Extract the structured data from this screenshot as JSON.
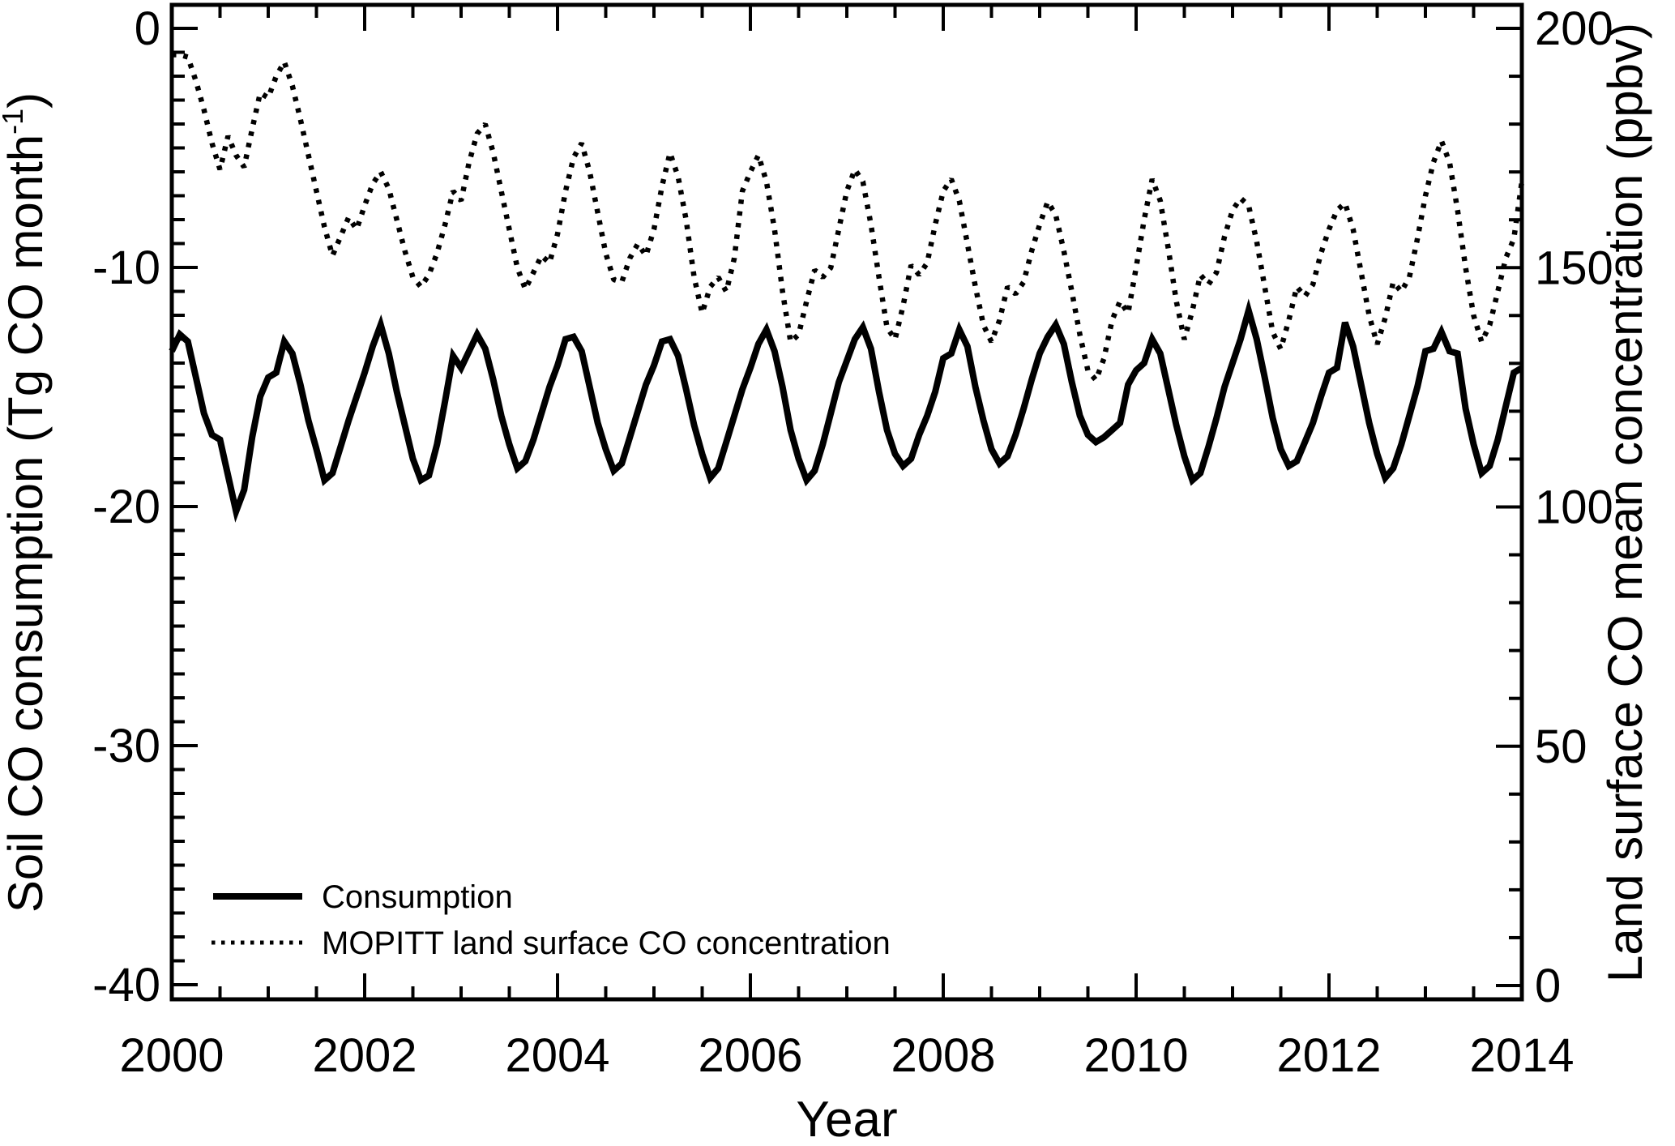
{
  "axes": {
    "x_title": "Year",
    "y_left_title": "Soil CO consumption (Tg CO month-1)",
    "y_left_title_parts": {
      "pre": "Soil CO consumption (Tg CO month",
      "sup": "-1",
      "post": ")"
    },
    "y_right_title": "Land surface CO mean concentration (ppbv)"
  },
  "colors": {
    "foreground": "#000000",
    "background": "#ffffff"
  },
  "chart_data": {
    "type": "line",
    "title": "",
    "xlabel": "Year",
    "ylabel_left": "Soil CO consumption (Tg CO month-1)",
    "ylabel_right": "Land surface CO mean concentration (ppbv)",
    "x_range": [
      2000,
      2014
    ],
    "x_tick_labels": [
      "2000",
      "2002",
      "2004",
      "2006",
      "2008",
      "2010",
      "2012",
      "2014"
    ],
    "x_major_tick_values": [
      2000,
      2002,
      2004,
      2006,
      2008,
      2010,
      2012,
      2014
    ],
    "x_minor_step_years": 0.5,
    "y_left_axis": {
      "title": "Soil CO consumption (Tg CO month-1)",
      "tick_labels": [
        "0",
        "-10",
        "-20",
        "-30",
        "-40"
      ],
      "tick_values": [
        0,
        -10,
        -20,
        -30,
        -40
      ],
      "minor_step": 1,
      "range": [
        0,
        -40
      ]
    },
    "y_right_axis": {
      "title": "Land surface CO mean concentration (ppbv)",
      "tick_labels": [
        "200",
        "150",
        "100",
        "50",
        "0"
      ],
      "tick_values": [
        200,
        150,
        100,
        50,
        0
      ],
      "minor_step": 10,
      "range": [
        0,
        200
      ]
    },
    "grid": false,
    "legend_position": "bottom-left",
    "sampling": "monthly",
    "start_year": 2000,
    "end_year": 2014,
    "series": [
      {
        "name": "Consumption",
        "axis": "left",
        "line_style": "solid",
        "units": "Tg CO month-1",
        "values": [
          -13.5,
          -12.8,
          -13.1,
          -14.6,
          -16.1,
          -17.0,
          -17.2,
          -18.7,
          -20.2,
          -19.3,
          -17.1,
          -15.4,
          -14.6,
          -14.4,
          -13.1,
          -13.6,
          -14.9,
          -16.4,
          -17.6,
          -18.9,
          -18.6,
          -17.5,
          -16.4,
          -15.4,
          -14.4,
          -13.3,
          -12.4,
          -13.6,
          -15.2,
          -16.6,
          -18.0,
          -18.9,
          -18.7,
          -17.4,
          -15.6,
          -13.7,
          -14.2,
          -13.5,
          -12.8,
          -13.4,
          -14.7,
          -16.2,
          -17.4,
          -18.4,
          -18.1,
          -17.2,
          -16.1,
          -15.0,
          -14.1,
          -13.0,
          -12.9,
          -13.5,
          -15.0,
          -16.5,
          -17.6,
          -18.5,
          -18.2,
          -17.1,
          -16.0,
          -14.9,
          -14.1,
          -13.1,
          -13.0,
          -13.7,
          -15.1,
          -16.6,
          -17.8,
          -18.8,
          -18.4,
          -17.3,
          -16.2,
          -15.1,
          -14.2,
          -13.2,
          -12.6,
          -13.5,
          -15.0,
          -16.8,
          -18.0,
          -18.9,
          -18.5,
          -17.4,
          -16.1,
          -14.8,
          -13.9,
          -13.0,
          -12.5,
          -13.4,
          -15.2,
          -16.8,
          -17.8,
          -18.3,
          -18.0,
          -17.0,
          -16.2,
          -15.2,
          -13.8,
          -13.6,
          -12.6,
          -13.3,
          -15.0,
          -16.4,
          -17.6,
          -18.2,
          -17.9,
          -17.0,
          -15.9,
          -14.7,
          -13.6,
          -12.9,
          -12.4,
          -13.2,
          -14.8,
          -16.2,
          -17.0,
          -17.3,
          -17.1,
          -16.8,
          -16.5,
          -14.9,
          -14.3,
          -14.0,
          -13.0,
          -13.6,
          -15.1,
          -16.6,
          -17.9,
          -18.9,
          -18.6,
          -17.5,
          -16.3,
          -15.0,
          -14.0,
          -13.0,
          -11.8,
          -13.0,
          -14.6,
          -16.3,
          -17.6,
          -18.3,
          -18.1,
          -17.3,
          -16.5,
          -15.4,
          -14.4,
          -14.2,
          -12.3,
          -13.3,
          -14.9,
          -16.5,
          -17.8,
          -18.8,
          -18.4,
          -17.4,
          -16.2,
          -15.0,
          -13.5,
          -13.4,
          -12.7,
          -13.5,
          -13.6,
          -15.9,
          -17.4,
          -18.6,
          -18.3,
          -17.2,
          -15.8,
          -14.4,
          -14.2
        ]
      },
      {
        "name": "MOPITT land surface CO concentration",
        "axis": "right",
        "line_style": "dotted",
        "units": "ppbv",
        "values": [
          194.5,
          194.5,
          194.0,
          189.0,
          183.0,
          176.0,
          170.5,
          177.5,
          173.5,
          171.0,
          179.0,
          186.5,
          185.5,
          190.0,
          193.0,
          188.0,
          181.0,
          173.5,
          166.0,
          158.5,
          152.5,
          156.5,
          160.5,
          158.0,
          163.0,
          167.5,
          170.0,
          166.5,
          160.0,
          153.5,
          148.0,
          146.0,
          148.5,
          153.0,
          159.0,
          166.0,
          164.0,
          172.0,
          178.0,
          180.0,
          174.0,
          166.0,
          158.0,
          150.0,
          145.5,
          149.0,
          152.5,
          151.0,
          157.0,
          166.0,
          173.0,
          176.0,
          170.0,
          161.5,
          153.0,
          147.5,
          147.0,
          152.0,
          155.0,
          152.5,
          158.0,
          167.0,
          174.0,
          169.0,
          160.0,
          148.0,
          140.5,
          146.0,
          148.0,
          145.0,
          152.0,
          166.0,
          170.0,
          173.5,
          168.0,
          158.0,
          145.0,
          134.5,
          136.0,
          143.0,
          149.5,
          148.0,
          150.0,
          158.0,
          166.0,
          170.5,
          168.0,
          159.0,
          148.0,
          137.5,
          135.0,
          142.0,
          150.5,
          148.5,
          151.0,
          159.0,
          166.0,
          168.5,
          164.0,
          155.0,
          146.0,
          138.0,
          134.5,
          139.0,
          146.0,
          144.5,
          147.0,
          153.5,
          159.0,
          163.8,
          161.0,
          153.5,
          145.0,
          136.0,
          128.5,
          126.5,
          131.0,
          139.0,
          143.0,
          140.5,
          150.0,
          160.0,
          168.5,
          164.0,
          154.0,
          143.0,
          135.0,
          141.0,
          148.5,
          146.5,
          149.0,
          156.5,
          162.0,
          164.5,
          163.0,
          155.5,
          146.0,
          136.5,
          133.0,
          139.0,
          146.0,
          144.0,
          146.5,
          153.0,
          158.0,
          162.0,
          163.5,
          158.0,
          149.0,
          140.0,
          134.0,
          139.5,
          147.0,
          145.0,
          148.0,
          156.0,
          165.0,
          172.0,
          176.5,
          172.0,
          162.0,
          150.0,
          140.0,
          134.5,
          138.0,
          145.0,
          152.0,
          156.0,
          168.0
        ]
      }
    ]
  }
}
